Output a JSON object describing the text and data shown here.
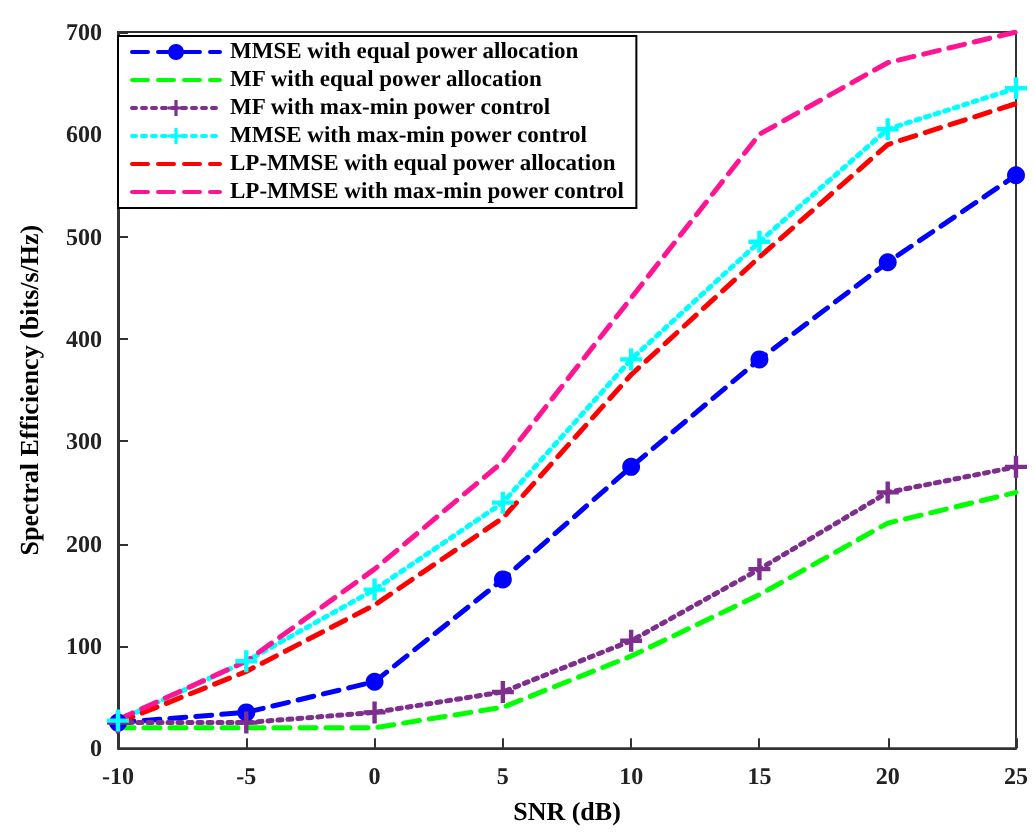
{
  "chart_data": {
    "type": "line",
    "xlabel": "SNR (dB)",
    "ylabel": "Spectral Efficiency (bits/s/Hz)",
    "x": [
      -10,
      -5,
      0,
      5,
      10,
      15,
      20,
      25
    ],
    "xlim": [
      -10,
      25
    ],
    "xticks": [
      -10,
      -5,
      0,
      5,
      10,
      15,
      20,
      25
    ],
    "ylim": [
      0,
      700
    ],
    "yticks": [
      0,
      100,
      200,
      300,
      400,
      500,
      600,
      700
    ],
    "grid": false,
    "legend": "top left",
    "series": [
      {
        "name": "MMSE with equal power allocation",
        "color": "#0000ff",
        "line_style": "dashed",
        "marker": "circle",
        "values": [
          25,
          35,
          65,
          165,
          275,
          380,
          475,
          560
        ]
      },
      {
        "name": "MF with equal power allocation",
        "color": "#00ff00",
        "line_style": "dashed",
        "marker": "none",
        "values": [
          20,
          20,
          20,
          40,
          90,
          150,
          220,
          250
        ]
      },
      {
        "name": "MF with max-min power control",
        "color": "#7e2f8e",
        "line_style": "dotted",
        "marker": "cross",
        "values": [
          25,
          25,
          35,
          55,
          105,
          175,
          250,
          275
        ]
      },
      {
        "name": "MMSE with max-min power control",
        "color": "#00ffff",
        "line_style": "dotted",
        "marker": "cross",
        "values": [
          27,
          85,
          155,
          240,
          380,
          495,
          605,
          645
        ]
      },
      {
        "name": "LP-MMSE with equal power allocation",
        "color": "#ff0000",
        "line_style": "dashed",
        "marker": "none",
        "values": [
          25,
          75,
          140,
          225,
          365,
          480,
          590,
          630
        ]
      },
      {
        "name": "LP-MMSE with max-min power control",
        "color": "#ff1493",
        "line_style": "dashed",
        "marker": "none",
        "values": [
          28,
          85,
          175,
          280,
          440,
          600,
          670,
          700
        ]
      }
    ]
  }
}
